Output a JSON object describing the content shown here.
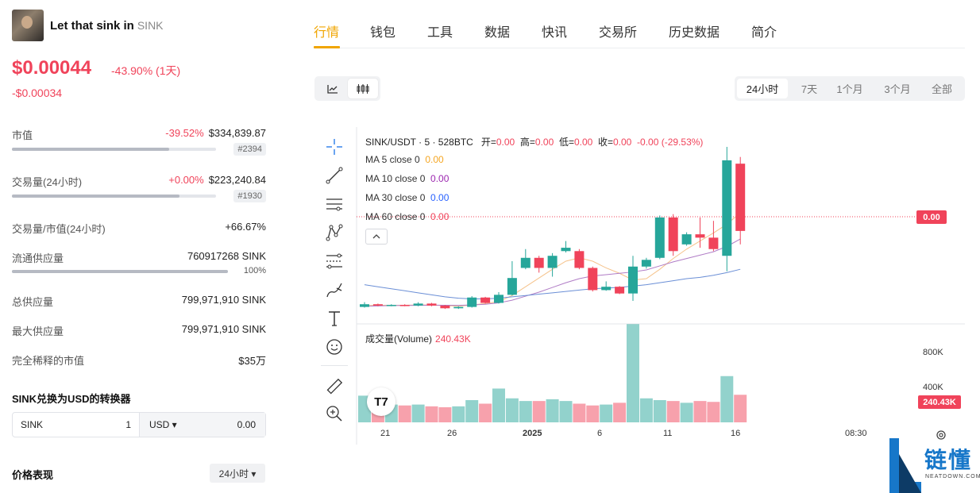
{
  "coin": {
    "name": "Let that sink in",
    "symbol": "SINK",
    "price": "$0.00044",
    "change_pct": "-43.90% (1天)",
    "change_abs": "-$0.00034"
  },
  "stats": {
    "market_cap": {
      "label": "市值",
      "pct": "-39.52%",
      "value": "$334,839.87",
      "rank": "#2394",
      "bar_fraction": 0.77
    },
    "volume": {
      "label": "交易量(24小时)",
      "pct": "+0.00%",
      "value": "$223,240.84",
      "rank": "#1930",
      "bar_fraction": 0.82
    },
    "vol_mcap": {
      "label": "交易量/市值(24小时)",
      "value": "+66.67%"
    },
    "circulating": {
      "label": "流通供应量",
      "value": "760917268 SINK",
      "sub": "100%",
      "bar_fraction": 1.0
    },
    "total_supply": {
      "label": "总供应量",
      "value": "799,971,910 SINK"
    },
    "max_supply": {
      "label": "最大供应量",
      "value": "799,971,910 SINK"
    },
    "fdv": {
      "label": "完全稀释的市值",
      "value": "$35万"
    }
  },
  "converter": {
    "title": "SINK兑换为USD的转换器",
    "from_symbol": "SINK",
    "from_amount": "1",
    "to_currency": "USD ▾",
    "to_amount": "0.00"
  },
  "performance": {
    "title": "价格表现",
    "range": "24小时 ▾"
  },
  "tabs": [
    "行情",
    "钱包",
    "工具",
    "数据",
    "快讯",
    "交易所",
    "历史数据",
    "简介"
  ],
  "ranges": [
    "24小时",
    "7天",
    "1个月",
    "3个月",
    "全部"
  ],
  "chart_header": {
    "pair": "SINK/USDT · 5 · 528BTC",
    "open_lbl": "开=",
    "open": "0.00",
    "high_lbl": "高=",
    "high": "0.00",
    "low_lbl": "低=",
    "low": "0.00",
    "close_lbl": "收=",
    "close": "0.00",
    "change": "-0.00 (-29.53%)",
    "ma": [
      {
        "label": "MA 5 close 0",
        "value": "0.00",
        "color": "#f5a623"
      },
      {
        "label": "MA 10 close 0",
        "value": "0.00",
        "color": "#9c27b0"
      },
      {
        "label": "MA 30 close 0",
        "value": "0.00",
        "color": "#2962ff"
      },
      {
        "label": "MA 60 close 0",
        "value": "0.00",
        "color": "#f0435a"
      }
    ],
    "collapse": "^",
    "last_price_tag": "0.00",
    "volume_label": "成交量(Volume)",
    "volume_value": "240.43K",
    "volume_tag": "240.43K",
    "vol_axis": [
      "800K",
      "400K"
    ],
    "x_axis": [
      "21",
      "26",
      "2025",
      "6",
      "11",
      "16",
      "08:30"
    ],
    "logo": "T7"
  },
  "chart_data": {
    "type": "candlestick",
    "colors": {
      "up": "#26a69a",
      "down": "#f0435a"
    },
    "candles": [
      {
        "o": 0.2,
        "c": 0.6,
        "h": 0.9,
        "l": 0.1,
        "v": 0.3
      },
      {
        "o": 0.6,
        "c": 0.4,
        "h": 0.7,
        "l": 0.3,
        "v": 0.22
      },
      {
        "o": 0.4,
        "c": 0.5,
        "h": 0.6,
        "l": 0.3,
        "v": 0.2
      },
      {
        "o": 0.5,
        "c": 0.4,
        "h": 0.6,
        "l": 0.3,
        "v": 0.19
      },
      {
        "o": 0.4,
        "c": 0.7,
        "h": 0.9,
        "l": 0.3,
        "v": 0.2
      },
      {
        "o": 0.7,
        "c": 0.4,
        "h": 0.8,
        "l": 0.3,
        "v": 0.18
      },
      {
        "o": 0.4,
        "c": 0.0,
        "h": 0.5,
        "l": -0.1,
        "v": 0.17
      },
      {
        "o": 0.0,
        "c": 0.2,
        "h": 0.3,
        "l": -0.1,
        "v": 0.18
      },
      {
        "o": 0.2,
        "c": 1.6,
        "h": 1.8,
        "l": 0.1,
        "v": 0.25
      },
      {
        "o": 1.6,
        "c": 0.8,
        "h": 1.7,
        "l": 0.7,
        "v": 0.21
      },
      {
        "o": 0.8,
        "c": 2.0,
        "h": 2.4,
        "l": 0.7,
        "v": 0.38
      },
      {
        "o": 2.0,
        "c": 4.5,
        "h": 7.0,
        "l": 1.9,
        "v": 0.27
      },
      {
        "o": 6.0,
        "c": 7.5,
        "h": 8.8,
        "l": 5.8,
        "v": 0.24
      },
      {
        "o": 7.5,
        "c": 6.0,
        "h": 7.8,
        "l": 5.3,
        "v": 0.24
      },
      {
        "o": 6.0,
        "c": 7.8,
        "h": 8.2,
        "l": 4.7,
        "v": 0.26
      },
      {
        "o": 8.5,
        "c": 9.0,
        "h": 10.0,
        "l": 8.3,
        "v": 0.24
      },
      {
        "o": 8.5,
        "c": 6.0,
        "h": 8.8,
        "l": 5.8,
        "v": 0.21
      },
      {
        "o": 6.0,
        "c": 2.7,
        "h": 6.2,
        "l": 2.5,
        "v": 0.19
      },
      {
        "o": 2.7,
        "c": 3.2,
        "h": 4.0,
        "l": 2.6,
        "v": 0.2
      },
      {
        "o": 3.2,
        "c": 2.2,
        "h": 3.3,
        "l": 2.1,
        "v": 0.22
      },
      {
        "o": 2.2,
        "c": 6.2,
        "h": 7.8,
        "l": 1.1,
        "v": 1.3
      },
      {
        "o": 6.2,
        "c": 7.2,
        "h": 7.5,
        "l": 5.9,
        "v": 0.27
      },
      {
        "o": 7.5,
        "c": 13.5,
        "h": 13.8,
        "l": 7.3,
        "v": 0.25
      },
      {
        "o": 13.5,
        "c": 8.5,
        "h": 14.0,
        "l": 7.8,
        "v": 0.24
      },
      {
        "o": 9.5,
        "c": 11.0,
        "h": 11.3,
        "l": 9.3,
        "v": 0.22
      },
      {
        "o": 11.0,
        "c": 10.5,
        "h": 13.5,
        "l": 9.0,
        "v": 0.24
      },
      {
        "o": 10.5,
        "c": 8.8,
        "h": 13.0,
        "l": 8.5,
        "v": 0.23
      },
      {
        "o": 7.8,
        "c": 22.0,
        "h": 24.0,
        "l": 5.5,
        "v": 0.52
      },
      {
        "o": 21.5,
        "c": 11.5,
        "h": 22.5,
        "l": 9.5,
        "v": 0.31
      }
    ],
    "ma5": [
      0.4,
      0.45,
      0.45,
      0.45,
      0.5,
      0.5,
      0.4,
      0.3,
      0.5,
      0.7,
      1.0,
      1.9,
      3.2,
      4.5,
      5.8,
      7.0,
      7.5,
      7.0,
      6.0,
      5.2,
      4.2,
      4.4,
      5.8,
      7.4,
      8.8,
      10.0,
      11.2,
      12.5,
      14.2
    ],
    "ma10": [
      0.3,
      0.35,
      0.4,
      0.42,
      0.44,
      0.46,
      0.45,
      0.44,
      0.5,
      0.6,
      0.8,
      1.2,
      1.8,
      2.4,
      3.1,
      3.8,
      4.4,
      4.8,
      5.0,
      5.2,
      5.4,
      5.7,
      6.3,
      6.9,
      7.4,
      7.9,
      8.4,
      9.2,
      10.3
    ],
    "ma30": [
      3.5,
      3.2,
      2.9,
      2.6,
      2.3,
      2.0,
      1.7,
      1.5,
      1.4,
      1.4,
      1.5,
      1.7,
      1.9,
      2.1,
      2.3,
      2.5,
      2.7,
      2.9,
      3.0,
      3.1,
      3.3,
      3.5,
      3.8,
      4.1,
      4.4,
      4.6,
      4.9,
      5.3,
      5.8
    ]
  }
}
